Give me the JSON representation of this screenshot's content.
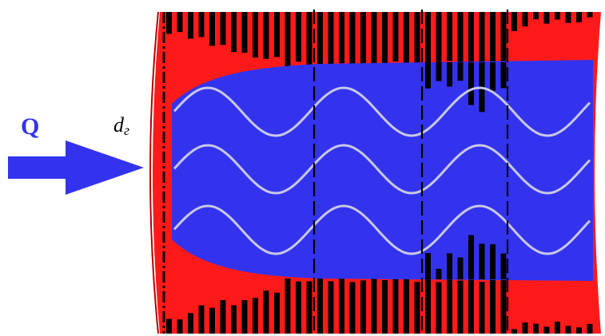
{
  "flow_label": "Q",
  "diameter_label": {
    "base": "d",
    "subscript": "г"
  }
}
